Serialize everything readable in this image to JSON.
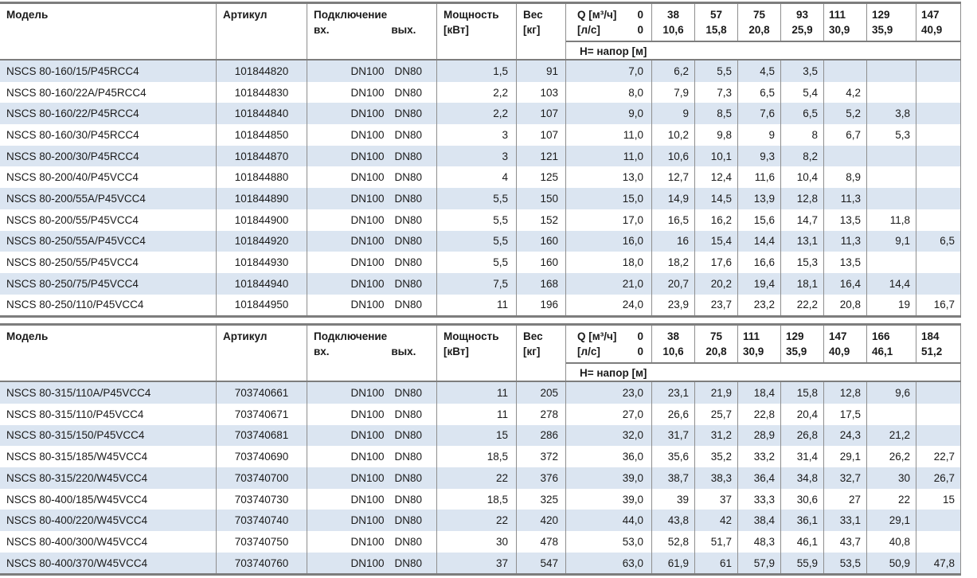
{
  "colors": {
    "stripe": "#dbe5f1",
    "grid": "#8e8e8e",
    "strong": "#7d7d7d",
    "text": "#1a1a1a"
  },
  "tables": [
    {
      "header": {
        "model": "Модель",
        "article": "Артикул",
        "connection": "Подключение",
        "inlet": "вх.",
        "outlet": "вых.",
        "power_line1": "Мощность",
        "power_line2": "[кВт]",
        "weight_line1": "Вес",
        "weight_line2": "[кг]",
        "q_label": "Q [м³/ч]",
        "q_zero": "0",
        "ls_label": "[л/с]",
        "ls_zero": "0",
        "head_label": "H= напор [м]",
        "flows": [
          {
            "m3h": "38",
            "ls": "10,6"
          },
          {
            "m3h": "57",
            "ls": "15,8"
          },
          {
            "m3h": "75",
            "ls": "20,8"
          },
          {
            "m3h": "93",
            "ls": "25,9"
          },
          {
            "m3h": "111",
            "ls": "30,9"
          },
          {
            "m3h": "129",
            "ls": "35,9"
          },
          {
            "m3h": "147",
            "ls": "40,9"
          }
        ]
      },
      "rows": [
        {
          "model": "NSCS 80-160/15/P45RCC4",
          "article": "101844820",
          "inlet": "DN100",
          "outlet": "DN80",
          "power": "1,5",
          "weight": "91",
          "heads": [
            "7,0",
            "6,2",
            "5,5",
            "4,5",
            "3,5",
            "",
            "",
            ""
          ]
        },
        {
          "model": "NSCS 80-160/22A/P45RCC4",
          "article": "101844830",
          "inlet": "DN100",
          "outlet": "DN80",
          "power": "2,2",
          "weight": "103",
          "heads": [
            "8,0",
            "7,9",
            "7,3",
            "6,5",
            "5,4",
            "4,2",
            "",
            ""
          ]
        },
        {
          "model": "NSCS 80-160/22/P45RCC4",
          "article": "101844840",
          "inlet": "DN100",
          "outlet": "DN80",
          "power": "2,2",
          "weight": "107",
          "heads": [
            "9,0",
            "9",
            "8,5",
            "7,6",
            "6,5",
            "5,2",
            "3,8",
            ""
          ]
        },
        {
          "model": "NSCS 80-160/30/P45RCC4",
          "article": "101844850",
          "inlet": "DN100",
          "outlet": "DN80",
          "power": "3",
          "weight": "107",
          "heads": [
            "11,0",
            "10,2",
            "9,8",
            "9",
            "8",
            "6,7",
            "5,3",
            ""
          ]
        },
        {
          "model": "NSCS 80-200/30/P45RCC4",
          "article": "101844870",
          "inlet": "DN100",
          "outlet": "DN80",
          "power": "3",
          "weight": "121",
          "heads": [
            "11,0",
            "10,6",
            "10,1",
            "9,3",
            "8,2",
            "",
            "",
            ""
          ]
        },
        {
          "model": "NSCS 80-200/40/P45VCC4",
          "article": "101844880",
          "inlet": "DN100",
          "outlet": "DN80",
          "power": "4",
          "weight": "125",
          "heads": [
            "13,0",
            "12,7",
            "12,4",
            "11,6",
            "10,4",
            "8,9",
            "",
            ""
          ]
        },
        {
          "model": "NSCS 80-200/55A/P45VCC4",
          "article": "101844890",
          "inlet": "DN100",
          "outlet": "DN80",
          "power": "5,5",
          "weight": "150",
          "heads": [
            "15,0",
            "14,9",
            "14,5",
            "13,9",
            "12,8",
            "11,3",
            "",
            ""
          ]
        },
        {
          "model": "NSCS 80-200/55/P45VCC4",
          "article": "101844900",
          "inlet": "DN100",
          "outlet": "DN80",
          "power": "5,5",
          "weight": "152",
          "heads": [
            "17,0",
            "16,5",
            "16,2",
            "15,6",
            "14,7",
            "13,5",
            "11,8",
            ""
          ]
        },
        {
          "model": "NSCS 80-250/55A/P45VCC4",
          "article": "101844920",
          "inlet": "DN100",
          "outlet": "DN80",
          "power": "5,5",
          "weight": "160",
          "heads": [
            "16,0",
            "16",
            "15,4",
            "14,4",
            "13,1",
            "11,3",
            "9,1",
            "6,5"
          ]
        },
        {
          "model": "NSCS 80-250/55/P45VCC4",
          "article": "101844930",
          "inlet": "DN100",
          "outlet": "DN80",
          "power": "5,5",
          "weight": "160",
          "heads": [
            "18,0",
            "18,2",
            "17,6",
            "16,6",
            "15,3",
            "13,5",
            "",
            ""
          ]
        },
        {
          "model": "NSCS 80-250/75/P45VCC4",
          "article": "101844940",
          "inlet": "DN100",
          "outlet": "DN80",
          "power": "7,5",
          "weight": "168",
          "heads": [
            "21,0",
            "20,7",
            "20,2",
            "19,4",
            "18,1",
            "16,4",
            "14,4",
            ""
          ]
        },
        {
          "model": "NSCS 80-250/110/P45VCC4",
          "article": "101844950",
          "inlet": "DN100",
          "outlet": "DN80",
          "power": "11",
          "weight": "196",
          "heads": [
            "24,0",
            "23,9",
            "23,7",
            "23,2",
            "22,2",
            "20,8",
            "19",
            "16,7"
          ]
        }
      ]
    },
    {
      "header": {
        "model": "Модель",
        "article": "Артикул",
        "connection": "Подключение",
        "inlet": "вх.",
        "outlet": "вых.",
        "power_line1": "Мощность",
        "power_line2": "[кВт]",
        "weight_line1": "Вес",
        "weight_line2": "[кг]",
        "q_label": "Q [м³/ч]",
        "q_zero": "0",
        "ls_label": "[л/с]",
        "ls_zero": "0",
        "head_label": "H= напор [м]",
        "flows": [
          {
            "m3h": "38",
            "ls": "10,6"
          },
          {
            "m3h": "75",
            "ls": "20,8"
          },
          {
            "m3h": "111",
            "ls": "30,9"
          },
          {
            "m3h": "129",
            "ls": "35,9"
          },
          {
            "m3h": "147",
            "ls": "40,9"
          },
          {
            "m3h": "166",
            "ls": "46,1"
          },
          {
            "m3h": "184",
            "ls": "51,2"
          }
        ]
      },
      "rows": [
        {
          "model": "NSCS 80-315/110A/P45VCC4",
          "article": "703740661",
          "inlet": "DN100",
          "outlet": "DN80",
          "power": "11",
          "weight": "205",
          "heads": [
            "23,0",
            "23,1",
            "21,9",
            "18,4",
            "15,8",
            "12,8",
            "9,6",
            ""
          ]
        },
        {
          "model": "NSCS 80-315/110/P45VCC4",
          "article": "703740671",
          "inlet": "DN100",
          "outlet": "DN80",
          "power": "11",
          "weight": "278",
          "heads": [
            "27,0",
            "26,6",
            "25,7",
            "22,8",
            "20,4",
            "17,5",
            "",
            ""
          ]
        },
        {
          "model": "NSCS 80-315/150/P45VCC4",
          "article": "703740681",
          "inlet": "DN100",
          "outlet": "DN80",
          "power": "15",
          "weight": "286",
          "heads": [
            "32,0",
            "31,7",
            "31,2",
            "28,9",
            "26,8",
            "24,3",
            "21,2",
            ""
          ]
        },
        {
          "model": "NSCS 80-315/185/W45VCC4",
          "article": "703740690",
          "inlet": "DN100",
          "outlet": "DN80",
          "power": "18,5",
          "weight": "372",
          "heads": [
            "36,0",
            "35,6",
            "35,2",
            "33,2",
            "31,4",
            "29,1",
            "26,2",
            "22,7"
          ]
        },
        {
          "model": "NSCS 80-315/220/W45VCC4",
          "article": "703740700",
          "inlet": "DN100",
          "outlet": "DN80",
          "power": "22",
          "weight": "376",
          "heads": [
            "39,0",
            "38,7",
            "38,3",
            "36,4",
            "34,8",
            "32,7",
            "30",
            "26,7"
          ]
        },
        {
          "model": "NSCS 80-400/185/W45VCC4",
          "article": "703740730",
          "inlet": "DN100",
          "outlet": "DN80",
          "power": "18,5",
          "weight": "325",
          "heads": [
            "39,0",
            "39",
            "37",
            "33,3",
            "30,6",
            "27",
            "22",
            "15"
          ]
        },
        {
          "model": "NSCS 80-400/220/W45VCC4",
          "article": "703740740",
          "inlet": "DN100",
          "outlet": "DN80",
          "power": "22",
          "weight": "420",
          "heads": [
            "44,0",
            "43,8",
            "42",
            "38,4",
            "36,1",
            "33,1",
            "29,1",
            ""
          ]
        },
        {
          "model": "NSCS 80-400/300/W45VCC4",
          "article": "703740750",
          "inlet": "DN100",
          "outlet": "DN80",
          "power": "30",
          "weight": "478",
          "heads": [
            "53,0",
            "52,8",
            "51,7",
            "48,3",
            "46,1",
            "43,7",
            "40,8",
            ""
          ]
        },
        {
          "model": "NSCS 80-400/370/W45VCC4",
          "article": "703740760",
          "inlet": "DN100",
          "outlet": "DN80",
          "power": "37",
          "weight": "547",
          "heads": [
            "63,0",
            "61,9",
            "61",
            "57,9",
            "55,9",
            "53,5",
            "50,9",
            "47,8"
          ]
        }
      ]
    }
  ]
}
